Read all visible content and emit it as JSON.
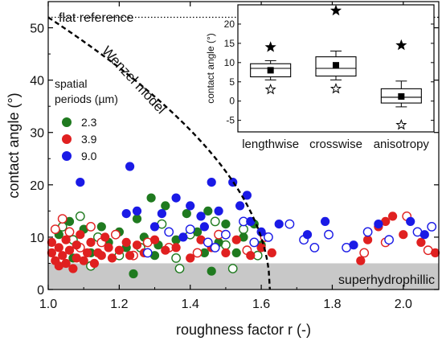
{
  "chart_data": [
    {
      "type": "scatter",
      "xlabel": "roughness factor r (-)",
      "ylabel": "contact angle (°)",
      "xlim": [
        1.0,
        2.1
      ],
      "ylim": [
        0,
        55
      ],
      "xticks": [
        1.0,
        1.2,
        1.4,
        1.6,
        1.8,
        2.0
      ],
      "yticks": [
        0,
        10,
        20,
        30,
        40,
        50
      ],
      "grid": false,
      "legend": {
        "title_lines": [
          "spatial",
          "periods (µm)"
        ],
        "placement": "left-middle"
      },
      "annotations": {
        "flat_reference": {
          "label": "flat reference",
          "y": 52
        },
        "wenzel": {
          "label": "Wenzel model",
          "theta0": 52
        },
        "superhydrophilic": {
          "label": "superhydrophillic",
          "ymax": 5
        }
      },
      "series": [
        {
          "name": "2.3",
          "color": "#1f7a1f",
          "points": [
            [
              1.03,
              10.5
            ],
            [
              1.06,
              13.0
            ],
            [
              1.08,
              8.5
            ],
            [
              1.1,
              11.5
            ],
            [
              1.12,
              7.0
            ],
            [
              1.15,
              12.0
            ],
            [
              1.17,
              9.0
            ],
            [
              1.2,
              11.0
            ],
            [
              1.22,
              8.0
            ],
            [
              1.25,
              13.5
            ],
            [
              1.27,
              10.0
            ],
            [
              1.29,
              17.5
            ],
            [
              1.31,
              8.5
            ],
            [
              1.33,
              16.0
            ],
            [
              1.36,
              9.5
            ],
            [
              1.39,
              14.5
            ],
            [
              1.42,
              11.0
            ],
            [
              1.45,
              15.0
            ],
            [
              1.48,
              9.0
            ],
            [
              1.5,
              12.5
            ],
            [
              1.53,
              7.0
            ],
            [
              1.55,
              10.0
            ],
            [
              1.58,
              12.5
            ],
            [
              1.6,
              8.5
            ],
            [
              1.24,
              3.0
            ],
            [
              1.3,
              6.5
            ],
            [
              1.44,
              7.0
            ],
            [
              1.46,
              3.5
            ],
            [
              1.07,
              6.0
            ]
          ],
          "open_points": [
            [
              1.04,
              12.0
            ],
            [
              1.07,
              9.5
            ],
            [
              1.09,
              14.0
            ],
            [
              1.14,
              10.0
            ],
            [
              1.2,
              6.5
            ],
            [
              1.26,
              8.0
            ],
            [
              1.32,
              12.5
            ],
            [
              1.36,
              6.0
            ],
            [
              1.4,
              10.5
            ],
            [
              1.47,
              13.0
            ],
            [
              1.5,
              8.5
            ],
            [
              1.55,
              11.5
            ],
            [
              1.59,
              6.5
            ],
            [
              1.12,
              4.5
            ],
            [
              1.37,
              4.0
            ],
            [
              1.52,
              4.0
            ]
          ]
        },
        {
          "name": "3.9",
          "color": "#e02020",
          "points": [
            [
              1.01,
              9.0
            ],
            [
              1.01,
              7.0
            ],
            [
              1.02,
              5.5
            ],
            [
              1.03,
              8.0
            ],
            [
              1.03,
              4.5
            ],
            [
              1.04,
              6.5
            ],
            [
              1.05,
              9.5
            ],
            [
              1.05,
              5.0
            ],
            [
              1.06,
              7.5
            ],
            [
              1.07,
              4.0
            ],
            [
              1.08,
              8.5
            ],
            [
              1.08,
              6.0
            ],
            [
              1.09,
              10.5
            ],
            [
              1.1,
              5.5
            ],
            [
              1.11,
              7.0
            ],
            [
              1.12,
              9.0
            ],
            [
              1.13,
              5.0
            ],
            [
              1.14,
              7.0
            ],
            [
              1.15,
              6.5
            ],
            [
              1.16,
              10.0
            ],
            [
              1.17,
              8.0
            ],
            [
              1.18,
              6.0
            ],
            [
              1.2,
              7.5
            ],
            [
              1.22,
              9.0
            ],
            [
              1.23,
              6.5
            ],
            [
              1.25,
              8.5
            ],
            [
              1.27,
              7.0
            ],
            [
              1.3,
              9.5
            ],
            [
              1.33,
              7.5
            ],
            [
              1.36,
              8.0
            ],
            [
              1.4,
              6.0
            ],
            [
              1.43,
              9.5
            ],
            [
              1.46,
              8.0
            ],
            [
              1.5,
              7.0
            ],
            [
              1.53,
              9.5
            ],
            [
              1.57,
              6.5
            ],
            [
              1.6,
              8.0
            ],
            [
              1.63,
              7.0
            ],
            [
              1.88,
              5.5
            ],
            [
              1.9,
              9.5
            ],
            [
              1.93,
              12.0
            ],
            [
              1.95,
              13.0
            ],
            [
              1.97,
              14.0
            ],
            [
              2.0,
              10.5
            ],
            [
              2.05,
              9.0
            ],
            [
              2.09,
              7.0
            ]
          ],
          "open_points": [
            [
              1.02,
              11.5
            ],
            [
              1.04,
              13.5
            ],
            [
              1.06,
              11.0
            ],
            [
              1.09,
              8.0
            ],
            [
              1.12,
              12.0
            ],
            [
              1.15,
              9.0
            ],
            [
              1.19,
              10.5
            ],
            [
              1.24,
              6.5
            ],
            [
              1.28,
              9.0
            ],
            [
              1.34,
              8.0
            ],
            [
              1.42,
              7.0
            ],
            [
              1.48,
              10.5
            ],
            [
              1.56,
              7.5
            ],
            [
              1.61,
              10.0
            ],
            [
              1.89,
              7.0
            ],
            [
              1.95,
              9.0
            ],
            [
              2.01,
              14.0
            ],
            [
              2.07,
              7.5
            ]
          ]
        },
        {
          "name": "9.0",
          "color": "#1a1ae6",
          "points": [
            [
              1.09,
              20.5
            ],
            [
              1.23,
              23.5
            ],
            [
              1.36,
              17.5
            ],
            [
              1.46,
              20.5
            ],
            [
              1.52,
              20.5
            ],
            [
              1.4,
              16.0
            ],
            [
              1.43,
              14.0
            ],
            [
              1.54,
              16.0
            ],
            [
              1.56,
              18.0
            ],
            [
              1.25,
              15.0
            ],
            [
              1.3,
              12.0
            ],
            [
              1.38,
              10.0
            ],
            [
              1.44,
              12.0
            ],
            [
              1.48,
              15.0
            ],
            [
              1.57,
              13.0
            ],
            [
              1.32,
              14.5
            ],
            [
              1.22,
              14.5
            ],
            [
              1.73,
              10.5
            ],
            [
              1.78,
              13.0
            ],
            [
              1.86,
              8.5
            ],
            [
              1.93,
              12.5
            ],
            [
              2.02,
              13.0
            ],
            [
              2.06,
              10.5
            ],
            [
              1.6,
              11.0
            ],
            [
              1.65,
              12.5
            ]
          ],
          "open_points": [
            [
              1.34,
              11.0
            ],
            [
              1.4,
              11.5
            ],
            [
              1.45,
              9.0
            ],
            [
              1.5,
              10.5
            ],
            [
              1.55,
              13.0
            ],
            [
              1.62,
              10.0
            ],
            [
              1.68,
              12.5
            ],
            [
              1.72,
              9.5
            ],
            [
              1.75,
              8.0
            ],
            [
              1.79,
              10.5
            ],
            [
              1.84,
              8.0
            ],
            [
              1.9,
              11.0
            ],
            [
              1.96,
              9.5
            ],
            [
              2.04,
              11.0
            ],
            [
              2.08,
              12.0
            ],
            [
              1.28,
              7.0
            ],
            [
              1.47,
              8.0
            ],
            [
              1.58,
              9.0
            ]
          ]
        }
      ]
    },
    {
      "type": "box",
      "ylabel": "contact angle (°)",
      "ylim": [
        -8,
        25
      ],
      "yticks": [
        -5,
        0,
        5,
        10,
        15,
        20
      ],
      "categories": [
        "lengthwise",
        "crosswise",
        "anisotropy"
      ],
      "boxes": [
        {
          "whisker_low": 5.5,
          "q1": 6.3,
          "median": 8.5,
          "q3": 9.7,
          "whisker_high": 10.5,
          "mean": 8.0,
          "max_star": 14.0,
          "min_star": 3.0
        },
        {
          "whisker_low": 5.5,
          "q1": 6.5,
          "median": 8.5,
          "q3": 11.5,
          "whisker_high": 13.0,
          "mean": 9.3,
          "max_star": 23.5,
          "min_star": 3.2
        },
        {
          "whisker_low": -1.5,
          "q1": -0.5,
          "median": 1.0,
          "q3": 3.2,
          "whisker_high": 5.2,
          "mean": 1.2,
          "max_star": 14.5,
          "min_star": -6.2
        }
      ]
    }
  ]
}
